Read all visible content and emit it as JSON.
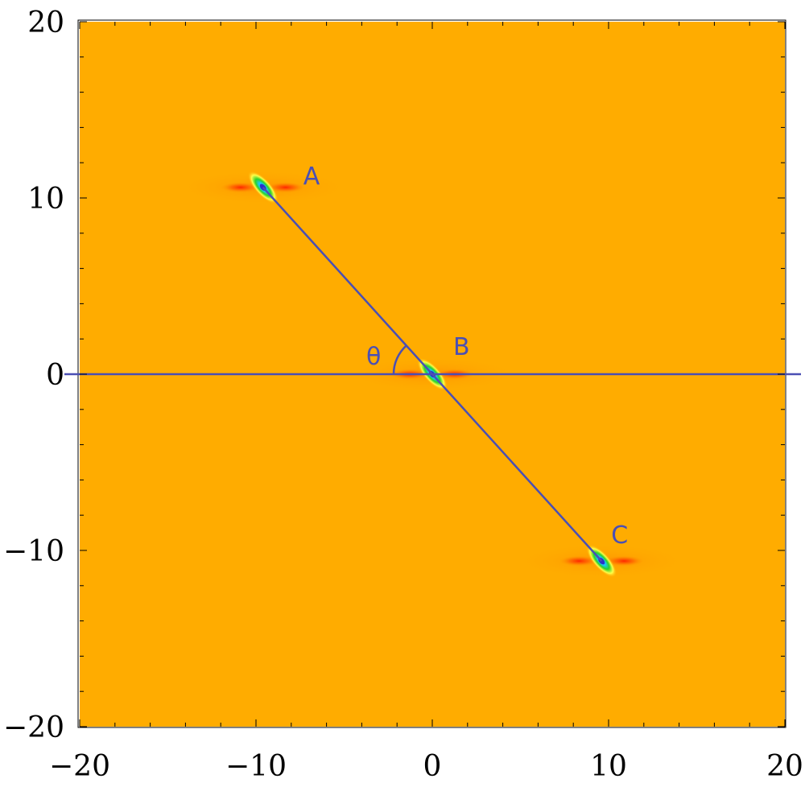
{
  "chart_data": {
    "type": "heatmap",
    "title": "",
    "xlabel": "",
    "ylabel": "",
    "xlim": [
      -20,
      20
    ],
    "ylim": [
      -20,
      20
    ],
    "x_ticks": [
      -20,
      -10,
      0,
      10,
      20
    ],
    "y_ticks": [
      20,
      10,
      0,
      -10,
      -20
    ],
    "x_tick_labels": [
      "−20",
      "−10",
      "0",
      "10",
      "20"
    ],
    "y_tick_labels": [
      "20",
      "10",
      "0",
      "−10",
      "−20"
    ],
    "background_color": "#ffac00",
    "line_color": "#4a4fb4",
    "points": [
      {
        "label": "A",
        "x": -9.6,
        "y": 10.6
      },
      {
        "label": "B",
        "x": 0,
        "y": 0
      },
      {
        "label": "C",
        "x": 9.6,
        "y": -10.6
      }
    ],
    "angle_label": "θ",
    "reference_line_y": 0,
    "grid": false
  }
}
